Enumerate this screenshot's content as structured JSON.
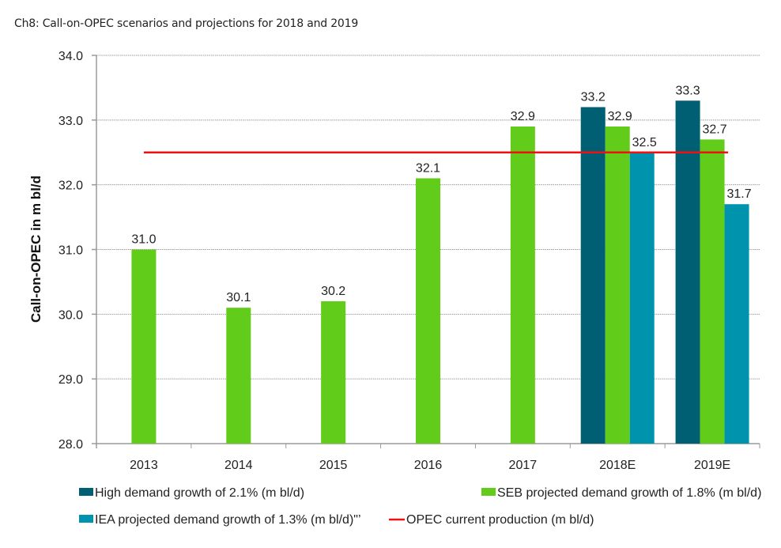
{
  "page": {
    "title": "Ch8: Call-on-OPEC scenarios and projections for 2018 and 2019"
  },
  "chart_data": {
    "type": "bar",
    "title": "Ch8: Call-on-OPEC scenarios and projections for 2018 and 2019",
    "xlabel": "",
    "ylabel": "Call-on-OPEC  in m bl/d",
    "ylim": [
      28.0,
      34.0
    ],
    "yticks": [
      "28.0",
      "29.0",
      "30.0",
      "31.0",
      "32.0",
      "33.0",
      "34.0"
    ],
    "grid": true,
    "legend_position": "bottom",
    "categories": [
      "2013",
      "2014",
      "2015",
      "2016",
      "2017",
      "2018E",
      "2019E"
    ],
    "series": [
      {
        "name": "High demand growth of 2.1% (m bl/d)",
        "color": "#005f72",
        "values": [
          null,
          null,
          null,
          null,
          null,
          33.2,
          33.3
        ],
        "labels": [
          "",
          "",
          "",
          "",
          "",
          "33.2",
          "33.3"
        ]
      },
      {
        "name": "SEB projected demand growth of 1.8% (m bl/d)",
        "color": "#62cc1a",
        "values": [
          31.0,
          30.1,
          30.2,
          32.1,
          32.9,
          32.9,
          32.7
        ],
        "labels": [
          "31.0",
          "30.1",
          "30.2",
          "32.1",
          "32.9",
          "32.9",
          "32.7"
        ]
      },
      {
        "name": "IEA projected demand growth of 1.3% (m bl/d)\"’",
        "color": "#0093ad",
        "values": [
          null,
          null,
          null,
          null,
          null,
          32.5,
          31.7
        ],
        "labels": [
          "",
          "",
          "",
          "",
          "",
          "32.5",
          "31.7"
        ]
      }
    ],
    "line": {
      "name": "OPEC current production (m bl/d)",
      "color": "#ee1111",
      "value": 32.5,
      "from_category": "2013",
      "to_category": "2019E"
    },
    "legend": [
      {
        "label": "High demand growth of 2.1% (m bl/d)",
        "color": "#005f72",
        "kind": "box"
      },
      {
        "label": "SEB projected demand growth of 1.8% (m bl/d)",
        "color": "#62cc1a",
        "kind": "box"
      },
      {
        "label": "IEA projected demand growth of 1.3% (m bl/d)\"’",
        "color": "#0093ad",
        "kind": "box"
      },
      {
        "label": "OPEC current production (m bl/d)",
        "color": "#ee1111",
        "kind": "line"
      }
    ]
  }
}
